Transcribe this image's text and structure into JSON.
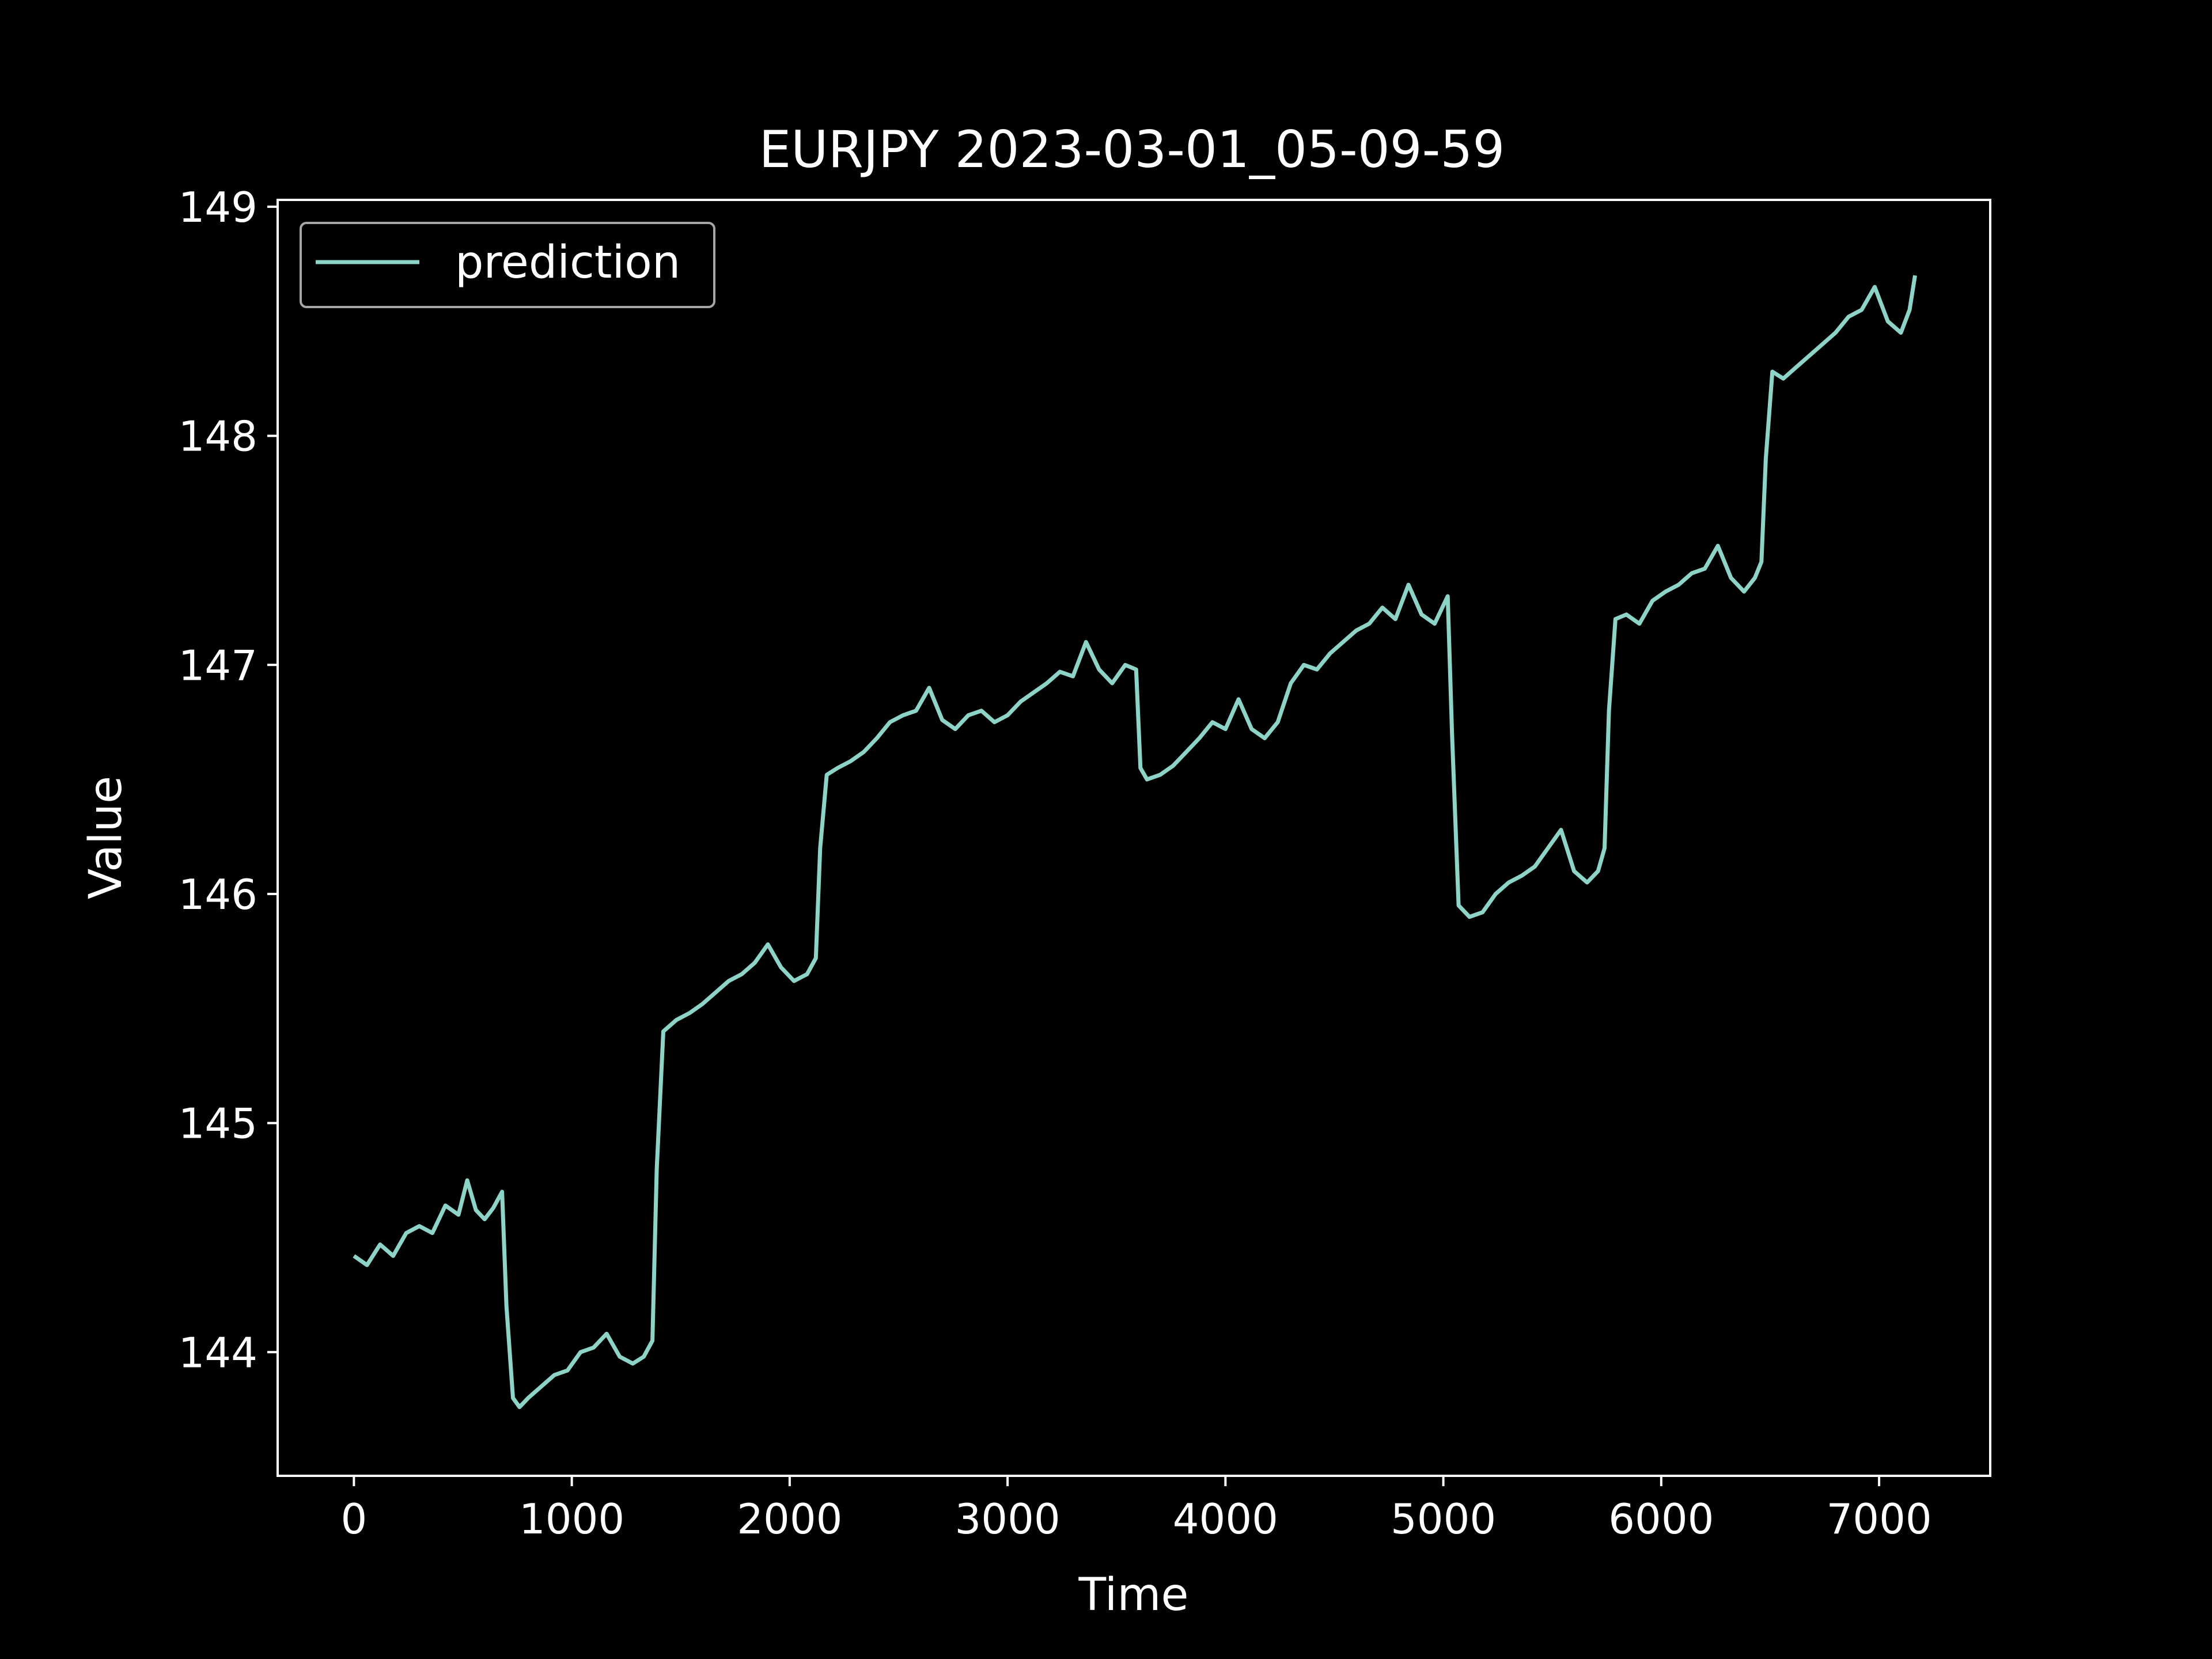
{
  "chart_data": {
    "type": "line",
    "title": "EURJPY 2023-03-01_05-09-59",
    "xlabel": "Time",
    "ylabel": "Value",
    "xlim": [
      -350,
      7510
    ],
    "ylim": [
      143.46,
      149.03
    ],
    "xticks": [
      0,
      1000,
      2000,
      3000,
      4000,
      5000,
      6000,
      7000
    ],
    "xtick_labels": [
      "0",
      "1000",
      "2000",
      "3000",
      "4000",
      "5000",
      "6000",
      "7000"
    ],
    "yticks": [
      144,
      145,
      146,
      147,
      148,
      149
    ],
    "ytick_labels": [
      "144",
      "145",
      "146",
      "147",
      "148",
      "149"
    ],
    "grid": false,
    "legend": "upper-left",
    "background": "#000000",
    "foreground": "#ffffff",
    "series": [
      {
        "name": "prediction",
        "color": "#8dd3c7",
        "points": [
          [
            0,
            144.42
          ],
          [
            60,
            144.38
          ],
          [
            120,
            144.47
          ],
          [
            180,
            144.42
          ],
          [
            240,
            144.52
          ],
          [
            300,
            144.55
          ],
          [
            360,
            144.52
          ],
          [
            420,
            144.64
          ],
          [
            480,
            144.6
          ],
          [
            520,
            144.75
          ],
          [
            560,
            144.62
          ],
          [
            600,
            144.58
          ],
          [
            640,
            144.63
          ],
          [
            680,
            144.7
          ],
          [
            700,
            144.2
          ],
          [
            730,
            143.8
          ],
          [
            760,
            143.76
          ],
          [
            800,
            143.8
          ],
          [
            860,
            143.85
          ],
          [
            920,
            143.9
          ],
          [
            980,
            143.92
          ],
          [
            1040,
            144.0
          ],
          [
            1100,
            144.02
          ],
          [
            1160,
            144.08
          ],
          [
            1220,
            143.98
          ],
          [
            1280,
            143.95
          ],
          [
            1330,
            143.98
          ],
          [
            1370,
            144.05
          ],
          [
            1390,
            144.8
          ],
          [
            1420,
            145.4
          ],
          [
            1480,
            145.45
          ],
          [
            1540,
            145.48
          ],
          [
            1600,
            145.52
          ],
          [
            1660,
            145.57
          ],
          [
            1720,
            145.62
          ],
          [
            1780,
            145.65
          ],
          [
            1840,
            145.7
          ],
          [
            1900,
            145.78
          ],
          [
            1960,
            145.68
          ],
          [
            2020,
            145.62
          ],
          [
            2080,
            145.65
          ],
          [
            2120,
            145.72
          ],
          [
            2140,
            146.2
          ],
          [
            2170,
            146.52
          ],
          [
            2220,
            146.55
          ],
          [
            2280,
            146.58
          ],
          [
            2340,
            146.62
          ],
          [
            2400,
            146.68
          ],
          [
            2460,
            146.75
          ],
          [
            2520,
            146.78
          ],
          [
            2580,
            146.8
          ],
          [
            2640,
            146.9
          ],
          [
            2700,
            146.76
          ],
          [
            2760,
            146.72
          ],
          [
            2820,
            146.78
          ],
          [
            2880,
            146.8
          ],
          [
            2940,
            146.75
          ],
          [
            3000,
            146.78
          ],
          [
            3060,
            146.84
          ],
          [
            3120,
            146.88
          ],
          [
            3180,
            146.92
          ],
          [
            3240,
            146.97
          ],
          [
            3300,
            146.95
          ],
          [
            3360,
            147.1
          ],
          [
            3420,
            146.98
          ],
          [
            3480,
            146.92
          ],
          [
            3540,
            147.0
          ],
          [
            3590,
            146.98
          ],
          [
            3610,
            146.55
          ],
          [
            3640,
            146.5
          ],
          [
            3700,
            146.52
          ],
          [
            3760,
            146.56
          ],
          [
            3820,
            146.62
          ],
          [
            3880,
            146.68
          ],
          [
            3940,
            146.75
          ],
          [
            4000,
            146.72
          ],
          [
            4060,
            146.85
          ],
          [
            4120,
            146.72
          ],
          [
            4180,
            146.68
          ],
          [
            4240,
            146.75
          ],
          [
            4300,
            146.92
          ],
          [
            4360,
            147.0
          ],
          [
            4420,
            146.98
          ],
          [
            4480,
            147.05
          ],
          [
            4540,
            147.1
          ],
          [
            4600,
            147.15
          ],
          [
            4660,
            147.18
          ],
          [
            4720,
            147.25
          ],
          [
            4780,
            147.2
          ],
          [
            4840,
            147.35
          ],
          [
            4900,
            147.22
          ],
          [
            4960,
            147.18
          ],
          [
            5020,
            147.3
          ],
          [
            5040,
            146.7
          ],
          [
            5070,
            145.95
          ],
          [
            5120,
            145.9
          ],
          [
            5180,
            145.92
          ],
          [
            5240,
            146.0
          ],
          [
            5300,
            146.05
          ],
          [
            5360,
            146.08
          ],
          [
            5420,
            146.12
          ],
          [
            5480,
            146.2
          ],
          [
            5540,
            146.28
          ],
          [
            5600,
            146.1
          ],
          [
            5660,
            146.05
          ],
          [
            5710,
            146.1
          ],
          [
            5740,
            146.2
          ],
          [
            5760,
            146.8
          ],
          [
            5790,
            147.2
          ],
          [
            5840,
            147.22
          ],
          [
            5900,
            147.18
          ],
          [
            5960,
            147.28
          ],
          [
            6020,
            147.32
          ],
          [
            6080,
            147.35
          ],
          [
            6140,
            147.4
          ],
          [
            6200,
            147.42
          ],
          [
            6260,
            147.52
          ],
          [
            6320,
            147.38
          ],
          [
            6380,
            147.32
          ],
          [
            6430,
            147.38
          ],
          [
            6460,
            147.45
          ],
          [
            6480,
            147.9
          ],
          [
            6510,
            148.28
          ],
          [
            6560,
            148.25
          ],
          [
            6620,
            148.3
          ],
          [
            6680,
            148.35
          ],
          [
            6740,
            148.4
          ],
          [
            6800,
            148.45
          ],
          [
            6860,
            148.52
          ],
          [
            6920,
            148.55
          ],
          [
            6980,
            148.65
          ],
          [
            7040,
            148.5
          ],
          [
            7100,
            148.45
          ],
          [
            7140,
            148.55
          ],
          [
            7165,
            148.7
          ]
        ]
      }
    ]
  }
}
